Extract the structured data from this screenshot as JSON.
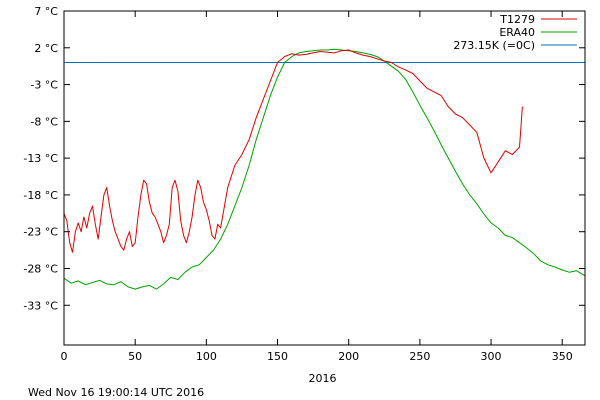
{
  "chart_data": {
    "type": "line",
    "title": "",
    "xlabel": "2016",
    "ylabel": "",
    "xlim": [
      0,
      366
    ],
    "ylim": [
      -38.4,
      7
    ],
    "x_ticks": [
      {
        "value": 0,
        "label": "0"
      },
      {
        "value": 50,
        "label": "50"
      },
      {
        "value": 100,
        "label": "100"
      },
      {
        "value": 150,
        "label": "150"
      },
      {
        "value": 200,
        "label": "200"
      },
      {
        "value": 250,
        "label": "250"
      },
      {
        "value": 300,
        "label": "300"
      },
      {
        "value": 350,
        "label": "350"
      }
    ],
    "y_ticks": [
      {
        "value": 7,
        "label": "7 °C"
      },
      {
        "value": 2,
        "label": "2 °C"
      },
      {
        "value": -3,
        "label": "-3 °C"
      },
      {
        "value": -8,
        "label": "-8 °C"
      },
      {
        "value": -13,
        "label": "-13 °C"
      },
      {
        "value": -18,
        "label": "-18 °C"
      },
      {
        "value": -23,
        "label": "-23 °C"
      },
      {
        "value": -28,
        "label": "-28 °C"
      },
      {
        "value": -33,
        "label": "-33 °C"
      }
    ],
    "legend_position": "top-right",
    "series": [
      {
        "name": "T1279",
        "color": "#dd0000",
        "x": [
          0,
          2,
          4,
          6,
          8,
          10,
          12,
          14,
          16,
          18,
          20,
          22,
          24,
          26,
          28,
          30,
          32,
          34,
          36,
          38,
          40,
          42,
          44,
          46,
          48,
          50,
          52,
          54,
          56,
          58,
          60,
          62,
          64,
          66,
          68,
          70,
          72,
          74,
          76,
          78,
          80,
          82,
          84,
          86,
          88,
          90,
          92,
          94,
          96,
          98,
          100,
          102,
          104,
          106,
          108,
          110,
          115,
          120,
          125,
          130,
          135,
          140,
          145,
          150,
          155,
          160,
          165,
          170,
          175,
          180,
          185,
          190,
          195,
          200,
          205,
          210,
          215,
          220,
          225,
          230,
          235,
          240,
          245,
          250,
          255,
          260,
          265,
          270,
          275,
          280,
          285,
          290,
          295,
          300,
          305,
          310,
          315,
          320,
          322
        ],
        "values": [
          -20.5,
          -21.5,
          -24.5,
          -25.8,
          -23,
          -21.8,
          -23,
          -21,
          -22.5,
          -20.5,
          -19.5,
          -22,
          -24,
          -21,
          -18,
          -17,
          -19.5,
          -21.5,
          -23,
          -24,
          -25,
          -25.5,
          -24,
          -23,
          -25,
          -24.5,
          -21,
          -18,
          -16,
          -16.5,
          -19,
          -20.5,
          -21,
          -22,
          -23,
          -24.5,
          -23.5,
          -22,
          -17,
          -16,
          -17.5,
          -21.5,
          -23.5,
          -24.5,
          -23,
          -21,
          -18,
          -16,
          -17,
          -19,
          -20,
          -21.5,
          -23.5,
          -24,
          -22,
          -22.5,
          -17,
          -14,
          -12.5,
          -10.5,
          -7.5,
          -5,
          -2.5,
          0,
          0.8,
          1.2,
          1,
          1.1,
          1.3,
          1.5,
          1.4,
          1.3,
          1.6,
          1.7,
          1.3,
          1,
          0.8,
          0.5,
          0.2,
          0,
          -0.6,
          -1,
          -1.5,
          -2.5,
          -3.5,
          -4,
          -4.5,
          -6,
          -7,
          -7.5,
          -8.5,
          -9.5,
          -13,
          -15,
          -13.5,
          -12,
          -12.5,
          -11.5,
          -6
        ]
      },
      {
        "name": "ERA40",
        "color": "#00a000",
        "x": [
          0,
          5,
          10,
          15,
          20,
          25,
          30,
          35,
          40,
          45,
          50,
          55,
          60,
          65,
          70,
          75,
          80,
          85,
          90,
          95,
          100,
          105,
          110,
          115,
          120,
          125,
          130,
          135,
          140,
          145,
          150,
          155,
          160,
          165,
          170,
          175,
          180,
          185,
          190,
          195,
          200,
          205,
          210,
          215,
          220,
          225,
          230,
          235,
          240,
          245,
          250,
          255,
          260,
          265,
          270,
          275,
          280,
          285,
          290,
          295,
          300,
          305,
          310,
          315,
          320,
          325,
          330,
          335,
          340,
          345,
          350,
          355,
          360,
          366
        ],
        "values": [
          -29.3,
          -30,
          -29.7,
          -30.2,
          -29.9,
          -29.6,
          -30.1,
          -30.2,
          -29.8,
          -30.5,
          -30.8,
          -30.5,
          -30.3,
          -30.8,
          -30.1,
          -29.2,
          -29.5,
          -28.5,
          -27.8,
          -27.5,
          -26.5,
          -25.5,
          -24,
          -22,
          -19.5,
          -17,
          -14,
          -10.5,
          -7.5,
          -4.5,
          -2,
          0,
          0.8,
          1.3,
          1.5,
          1.6,
          1.7,
          1.7,
          1.8,
          1.7,
          1.6,
          1.5,
          1.3,
          1.1,
          0.8,
          0.2,
          -0.5,
          -1.2,
          -2.3,
          -4,
          -5.8,
          -7.5,
          -9.3,
          -11.2,
          -13,
          -14.8,
          -16.5,
          -18,
          -19.2,
          -20.6,
          -21.8,
          -22.5,
          -23.5,
          -23.8,
          -24.5,
          -25.2,
          -26,
          -27,
          -27.5,
          -27.8,
          -28.2,
          -28.5,
          -28.3,
          -29
        ]
      },
      {
        "name": "273.15K (=0C)",
        "color": "#0070c0",
        "x": [
          0,
          366
        ],
        "values": [
          0,
          0
        ]
      }
    ],
    "annotations": []
  },
  "footer": {
    "timestamp": "Wed Nov 16 19:00:14 UTC 2016"
  }
}
